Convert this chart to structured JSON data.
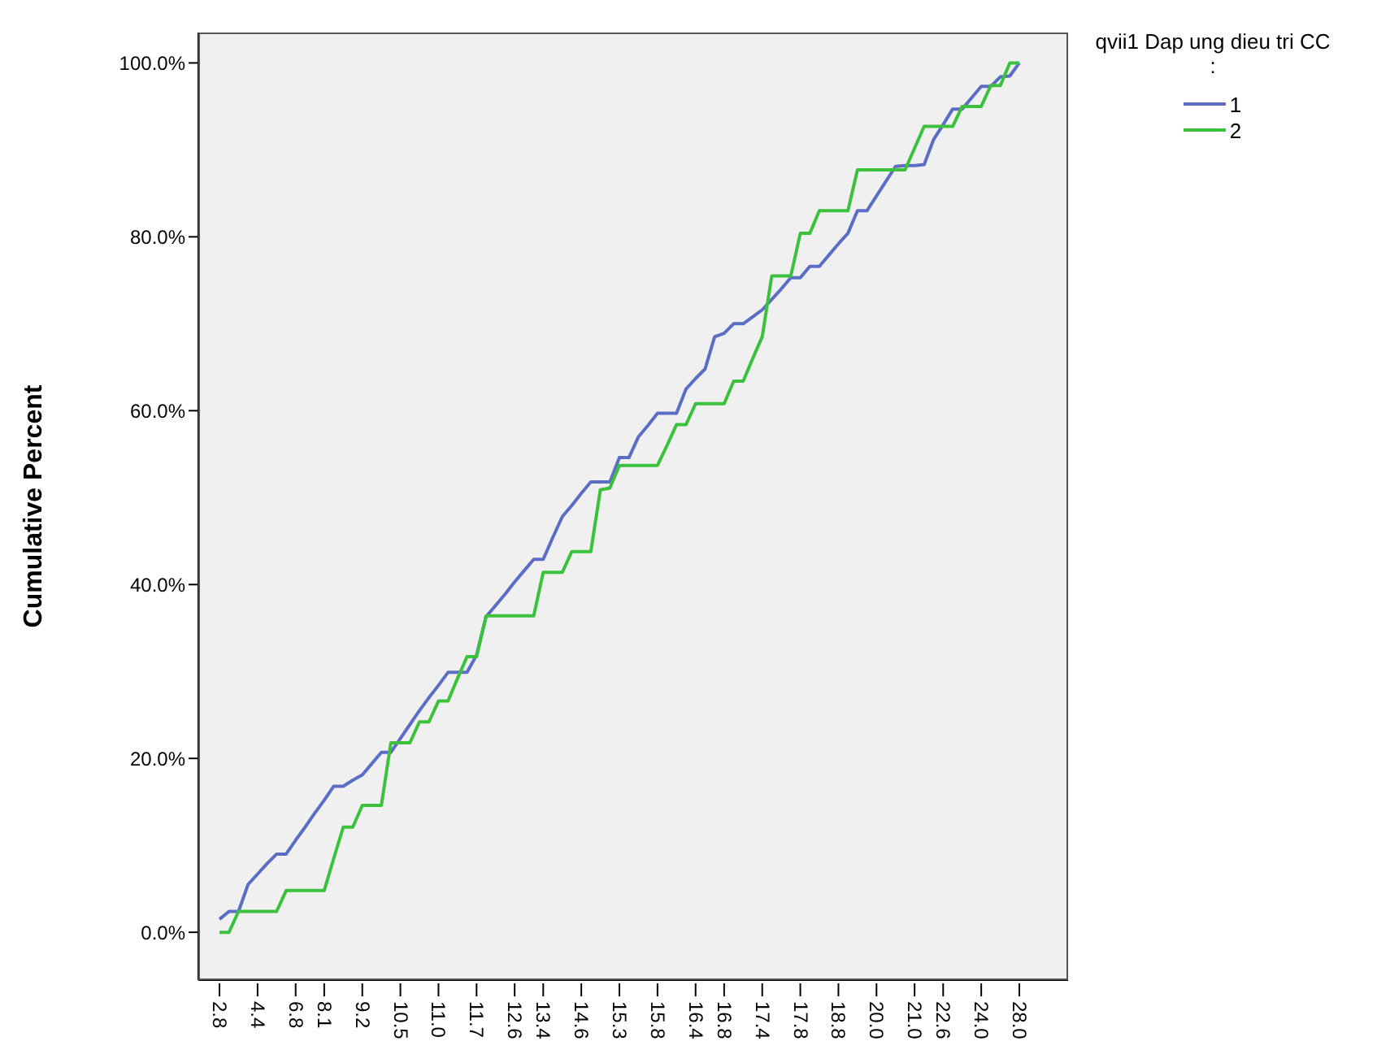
{
  "chart_data": {
    "type": "line",
    "ylabel": "Cumulative Percent",
    "legend_title": "qvii1 Dap ung dieu tri CC :",
    "legend": "top right",
    "grid": false,
    "marker": "none",
    "line_style": "solid",
    "categories": [
      "2.8",
      null,
      null,
      null,
      "4.4",
      null,
      null,
      null,
      "6.8",
      null,
      null,
      "8.1",
      null,
      null,
      null,
      "9.2",
      null,
      null,
      null,
      "10.5",
      null,
      null,
      null,
      "11.0",
      null,
      null,
      null,
      "11.7",
      null,
      null,
      null,
      "12.6",
      null,
      null,
      "13.4",
      null,
      null,
      null,
      "14.6",
      null,
      null,
      null,
      "15.3",
      null,
      null,
      null,
      "15.8",
      null,
      null,
      null,
      "16.4",
      null,
      null,
      "16.8",
      null,
      null,
      null,
      "17.4",
      null,
      null,
      null,
      "17.8",
      null,
      null,
      null,
      "18.8",
      null,
      null,
      null,
      "20.0",
      null,
      null,
      null,
      "21.0",
      null,
      null,
      "22.6",
      null,
      null,
      null,
      "24.0",
      null,
      null,
      null,
      "28.0"
    ],
    "ylim": [
      -5.5,
      103.5
    ],
    "yticks": [
      {
        "value": 0,
        "label": "0.0%"
      },
      {
        "value": 20,
        "label": "20.0%"
      },
      {
        "value": 40,
        "label": "40.0%"
      },
      {
        "value": 60,
        "label": "60.0%"
      },
      {
        "value": 80,
        "label": "80.0%"
      },
      {
        "value": 100,
        "label": "100.0%"
      }
    ],
    "series": [
      {
        "name": "1",
        "color": "#5b6ec4",
        "values": [
          1.5,
          2.4,
          2.4,
          5.5,
          6.7,
          7.9,
          9,
          9,
          10.6,
          12.1,
          13.7,
          15.2,
          16.8,
          16.8,
          17.5,
          18.1,
          19.4,
          20.7,
          20.7,
          22.3,
          23.9,
          25.5,
          27,
          28.4,
          29.9,
          29.9,
          29.9,
          31.9,
          36.3,
          37.6,
          38.9,
          40.3,
          41.6,
          42.9,
          42.9,
          45.4,
          47.8,
          49.1,
          50.5,
          51.8,
          51.8,
          51.8,
          54.6,
          54.6,
          57,
          58.3,
          59.7,
          59.7,
          59.7,
          62.5,
          63.7,
          64.8,
          68.5,
          68.9,
          70,
          70,
          70.8,
          71.6,
          72.8,
          74,
          75.3,
          75.3,
          76.6,
          76.6,
          77.9,
          79.2,
          80.4,
          83,
          83,
          84.7,
          86.4,
          88.1,
          88.2,
          88.2,
          88.3,
          91.2,
          92.9,
          94.7,
          94.7,
          96,
          97.3,
          97.3,
          98.4,
          98.5,
          100
        ]
      },
      {
        "name": "2",
        "color": "#3cc13c",
        "values": [
          0,
          0,
          2.4,
          2.4,
          2.4,
          2.4,
          2.4,
          4.8,
          4.8,
          4.8,
          4.8,
          4.8,
          8.5,
          12.1,
          12.1,
          14.6,
          14.6,
          14.6,
          21.8,
          21.8,
          21.8,
          24.2,
          24.2,
          26.6,
          26.6,
          29.2,
          31.7,
          31.7,
          36.4,
          36.4,
          36.4,
          36.4,
          36.4,
          36.4,
          41.4,
          41.4,
          41.4,
          43.8,
          43.8,
          43.8,
          50.9,
          51.1,
          53.7,
          53.7,
          53.7,
          53.7,
          53.7,
          56,
          58.4,
          58.4,
          60.8,
          60.8,
          60.8,
          60.8,
          63.4,
          63.4,
          66,
          68.5,
          75.5,
          75.5,
          75.5,
          80.4,
          80.4,
          83,
          83,
          83,
          83,
          87.7,
          87.7,
          87.7,
          87.7,
          87.7,
          87.7,
          90.2,
          92.7,
          92.7,
          92.7,
          92.7,
          95,
          95,
          95,
          97.4,
          97.4,
          100,
          100
        ]
      }
    ]
  }
}
